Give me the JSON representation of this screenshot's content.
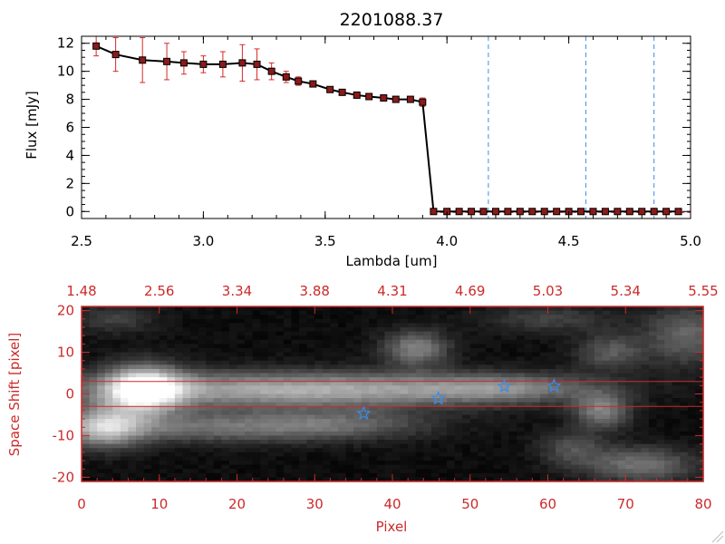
{
  "chart_data": [
    {
      "type": "line",
      "title": "2201088.37",
      "xlabel": "Lambda [um]",
      "ylabel": "Flux [mJy]",
      "xlim": [
        2.5,
        5.0
      ],
      "ylim": [
        -0.5,
        12.5
      ],
      "x_ticks": [
        "2.5",
        "3.0",
        "3.5",
        "4.0",
        "4.5",
        "5.0"
      ],
      "y_ticks": [
        "0",
        "2",
        "4",
        "6",
        "8",
        "10",
        "12"
      ],
      "series": [
        {
          "x": [
            2.56,
            2.64,
            2.75,
            2.85,
            2.92,
            3.0,
            3.08,
            3.16,
            3.22,
            3.28,
            3.34,
            3.39,
            3.45,
            3.52,
            3.57,
            3.63,
            3.68,
            3.74,
            3.79,
            3.85,
            3.9,
            3.945,
            4.0,
            4.05,
            4.1,
            4.15,
            4.2,
            4.25,
            4.3,
            4.35,
            4.4,
            4.45,
            4.5,
            4.55,
            4.6,
            4.65,
            4.7,
            4.75,
            4.8,
            4.85,
            4.9,
            4.95
          ],
          "y": [
            11.8,
            11.2,
            10.8,
            10.7,
            10.6,
            10.5,
            10.5,
            10.6,
            10.5,
            10.0,
            9.6,
            9.3,
            9.1,
            8.7,
            8.5,
            8.3,
            8.2,
            8.1,
            8.0,
            8.0,
            7.8,
            0,
            0,
            0,
            0,
            0,
            0,
            0,
            0,
            0,
            0,
            0,
            0,
            0,
            0,
            0,
            0,
            0,
            0,
            0,
            0,
            0
          ],
          "yerr": [
            0.7,
            1.2,
            1.6,
            1.3,
            0.8,
            0.6,
            0.9,
            1.3,
            1.1,
            0.6,
            0.4,
            0.3,
            0.2,
            0.2,
            0.2,
            0.2,
            0.2,
            0.2,
            0.2,
            0.2,
            0.3,
            0,
            0,
            0,
            0,
            0,
            0,
            0,
            0,
            0,
            0,
            0,
            0,
            0,
            0,
            0,
            0,
            0,
            0,
            0,
            0,
            0
          ],
          "color": "#000000",
          "marker_color": "#8b1a1a",
          "error_color": "#d42a2a"
        }
      ],
      "vlines": [
        4.17,
        4.57,
        4.85
      ],
      "vline_color": "#3c8ce6"
    },
    {
      "type": "heatmap",
      "xlabel": "Pixel",
      "ylabel": "Space Shift [pixel]",
      "xlim": [
        0,
        80
      ],
      "ylim": [
        -21,
        21
      ],
      "x_ticks": [
        "0",
        "10",
        "20",
        "30",
        "40",
        "50",
        "60",
        "70",
        "80"
      ],
      "y_ticks": [
        "-20",
        "-10",
        "0",
        "10",
        "20"
      ],
      "top_ticks": [
        "1.48",
        "2.56",
        "3.34",
        "3.88",
        "4.31",
        "4.69",
        "5.03",
        "5.34",
        "5.55"
      ],
      "axis_color": "#cc2a2a",
      "hlines": [
        3,
        -3
      ],
      "markers": [
        {
          "x": 36.3,
          "y": -4.7
        },
        {
          "x": 45.9,
          "y": -1.1
        },
        {
          "x": 54.4,
          "y": 1.8
        },
        {
          "x": 60.8,
          "y": 1.9
        }
      ],
      "marker_color": "#3c8ce6",
      "blobs": [
        {
          "x": 8,
          "y": 1,
          "sx": 3.5,
          "sy": 4,
          "a": 0.9
        },
        {
          "x": 20,
          "y": 1,
          "sx": 18,
          "sy": 3.2,
          "a": 0.45
        },
        {
          "x": 40,
          "y": 1,
          "sx": 16,
          "sy": 2.8,
          "a": 0.3
        },
        {
          "x": 55,
          "y": 1.5,
          "sx": 8,
          "sy": 2.5,
          "a": 0.28
        },
        {
          "x": 3,
          "y": -8,
          "sx": 3.5,
          "sy": 3.5,
          "a": 0.6
        },
        {
          "x": 18,
          "y": -8,
          "sx": 14,
          "sy": 2.6,
          "a": 0.38
        },
        {
          "x": 34,
          "y": -7,
          "sx": 8,
          "sy": 2.5,
          "a": 0.2
        },
        {
          "x": 43,
          "y": 11,
          "sx": 3,
          "sy": 3,
          "a": 0.45
        },
        {
          "x": 67,
          "y": -4,
          "sx": 2.5,
          "sy": 3,
          "a": 0.45
        },
        {
          "x": 72,
          "y": -17,
          "sx": 5,
          "sy": 3,
          "a": 0.4
        },
        {
          "x": 78,
          "y": 14,
          "sx": 4,
          "sy": 5,
          "a": 0.35
        },
        {
          "x": 68,
          "y": 10,
          "sx": 3,
          "sy": 3,
          "a": 0.3
        },
        {
          "x": 63,
          "y": -13,
          "sx": 3,
          "sy": 3,
          "a": 0.25
        },
        {
          "x": 4,
          "y": 18,
          "sx": 4,
          "sy": 2.5,
          "a": 0.2
        },
        {
          "x": 60,
          "y": 18,
          "sx": 6,
          "sy": 2.5,
          "a": 0.2
        }
      ]
    }
  ]
}
